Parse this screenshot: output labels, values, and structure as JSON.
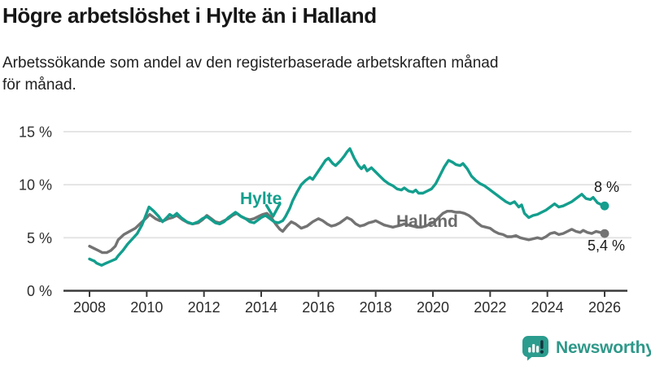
{
  "header": {
    "title": "Högre arbetslöshet i Hylte än i Halland",
    "subtitle_lines": [
      "Arbetssökande som andel av den registerbaserade arbetskraften månad",
      "för månad."
    ]
  },
  "footer": {
    "brand": "Newsworthy",
    "brand_color": "#2e9889"
  },
  "chart_data": {
    "type": "line",
    "title": "Högre arbetslöshet i Hylte än i Halland",
    "subtitle": "Arbetssökande som andel av den registerbaserade arbetskraften månad för månad.",
    "grid": true,
    "x_axis": {
      "ticks": [
        2008,
        2010,
        2012,
        2014,
        2016,
        2018,
        2020,
        2022,
        2024,
        2026
      ],
      "tick_labels": [
        "2008",
        "2010",
        "2012",
        "2014",
        "2016",
        "2018",
        "2020",
        "2022",
        "2024",
        "2026"
      ],
      "range": [
        2007.5,
        2026.5
      ]
    },
    "y_axis": {
      "ticks": [
        0,
        5,
        10,
        15
      ],
      "tick_labels": [
        "0 %",
        "5 %",
        "10 %",
        "15 %"
      ],
      "range": [
        0,
        15
      ],
      "unit": "%"
    },
    "series": [
      {
        "name": "Hylte",
        "color": "#139e8d",
        "end_label": "8 %",
        "end_value": 8.0,
        "points": [
          [
            2008.0,
            3.0
          ],
          [
            2008.08,
            2.9
          ],
          [
            2008.17,
            2.8
          ],
          [
            2008.25,
            2.6
          ],
          [
            2008.42,
            2.4
          ],
          [
            2008.58,
            2.6
          ],
          [
            2008.75,
            2.8
          ],
          [
            2008.92,
            3.0
          ],
          [
            2009.0,
            3.3
          ],
          [
            2009.17,
            3.8
          ],
          [
            2009.33,
            4.4
          ],
          [
            2009.5,
            4.9
          ],
          [
            2009.67,
            5.4
          ],
          [
            2009.83,
            6.2
          ],
          [
            2009.95,
            7.0
          ],
          [
            2010.08,
            7.9
          ],
          [
            2010.25,
            7.5
          ],
          [
            2010.42,
            7.0
          ],
          [
            2010.55,
            6.5
          ],
          [
            2010.7,
            6.9
          ],
          [
            2010.8,
            7.2
          ],
          [
            2010.92,
            7.0
          ],
          [
            2011.05,
            7.3
          ],
          [
            2011.2,
            6.9
          ],
          [
            2011.4,
            6.5
          ],
          [
            2011.6,
            6.3
          ],
          [
            2011.8,
            6.5
          ],
          [
            2011.95,
            6.8
          ],
          [
            2012.1,
            7.0
          ],
          [
            2012.25,
            6.7
          ],
          [
            2012.4,
            6.4
          ],
          [
            2012.55,
            6.3
          ],
          [
            2012.7,
            6.5
          ],
          [
            2012.85,
            6.9
          ],
          [
            2013.0,
            7.2
          ],
          [
            2013.1,
            7.4
          ],
          [
            2013.3,
            7.0
          ],
          [
            2013.45,
            6.8
          ],
          [
            2013.6,
            6.5
          ],
          [
            2013.75,
            6.4
          ],
          [
            2013.9,
            6.7
          ],
          [
            2014.0,
            6.9
          ],
          [
            2014.15,
            7.1
          ],
          [
            2014.3,
            6.8
          ],
          [
            2014.45,
            6.5
          ],
          [
            2014.6,
            6.4
          ],
          [
            2014.75,
            6.6
          ],
          [
            2014.85,
            7.0
          ],
          [
            2015.0,
            7.8
          ],
          [
            2015.1,
            8.5
          ],
          [
            2015.25,
            9.3
          ],
          [
            2015.4,
            10.0
          ],
          [
            2015.55,
            10.4
          ],
          [
            2015.7,
            10.7
          ],
          [
            2015.8,
            10.5
          ],
          [
            2015.95,
            11.1
          ],
          [
            2016.1,
            11.7
          ],
          [
            2016.25,
            12.3
          ],
          [
            2016.35,
            12.5
          ],
          [
            2016.5,
            12.0
          ],
          [
            2016.6,
            11.8
          ],
          [
            2016.75,
            12.2
          ],
          [
            2016.9,
            12.7
          ],
          [
            2017.0,
            13.1
          ],
          [
            2017.1,
            13.4
          ],
          [
            2017.25,
            12.5
          ],
          [
            2017.4,
            11.8
          ],
          [
            2017.5,
            11.5
          ],
          [
            2017.6,
            11.8
          ],
          [
            2017.7,
            11.3
          ],
          [
            2017.85,
            11.6
          ],
          [
            2018.0,
            11.2
          ],
          [
            2018.15,
            10.8
          ],
          [
            2018.3,
            10.4
          ],
          [
            2018.45,
            10.1
          ],
          [
            2018.6,
            9.9
          ],
          [
            2018.75,
            9.6
          ],
          [
            2018.9,
            9.5
          ],
          [
            2019.0,
            9.7
          ],
          [
            2019.15,
            9.4
          ],
          [
            2019.3,
            9.3
          ],
          [
            2019.4,
            9.5
          ],
          [
            2019.5,
            9.2
          ],
          [
            2019.65,
            9.2
          ],
          [
            2019.8,
            9.4
          ],
          [
            2019.95,
            9.6
          ],
          [
            2020.1,
            10.1
          ],
          [
            2020.25,
            10.9
          ],
          [
            2020.4,
            11.7
          ],
          [
            2020.55,
            12.3
          ],
          [
            2020.7,
            12.1
          ],
          [
            2020.8,
            11.9
          ],
          [
            2020.95,
            11.8
          ],
          [
            2021.05,
            12.0
          ],
          [
            2021.2,
            11.5
          ],
          [
            2021.35,
            10.8
          ],
          [
            2021.5,
            10.4
          ],
          [
            2021.65,
            10.1
          ],
          [
            2021.8,
            9.9
          ],
          [
            2021.95,
            9.6
          ],
          [
            2022.1,
            9.3
          ],
          [
            2022.25,
            9.0
          ],
          [
            2022.4,
            8.7
          ],
          [
            2022.55,
            8.4
          ],
          [
            2022.7,
            8.2
          ],
          [
            2022.85,
            8.4
          ],
          [
            2023.0,
            7.9
          ],
          [
            2023.1,
            8.1
          ],
          [
            2023.2,
            7.3
          ],
          [
            2023.35,
            6.9
          ],
          [
            2023.5,
            7.1
          ],
          [
            2023.65,
            7.2
          ],
          [
            2023.8,
            7.4
          ],
          [
            2023.95,
            7.6
          ],
          [
            2024.1,
            7.9
          ],
          [
            2024.25,
            8.2
          ],
          [
            2024.4,
            7.9
          ],
          [
            2024.55,
            8.0
          ],
          [
            2024.7,
            8.2
          ],
          [
            2024.85,
            8.4
          ],
          [
            2025.0,
            8.7
          ],
          [
            2025.2,
            9.1
          ],
          [
            2025.35,
            8.7
          ],
          [
            2025.5,
            8.6
          ],
          [
            2025.6,
            8.8
          ],
          [
            2025.75,
            8.3
          ],
          [
            2025.9,
            8.1
          ],
          [
            2026.0,
            8.0
          ]
        ]
      },
      {
        "name": "Halland",
        "color": "#737373",
        "end_label": "5,4 %",
        "end_value": 5.4,
        "points": [
          [
            2008.0,
            4.2
          ],
          [
            2008.15,
            4.0
          ],
          [
            2008.3,
            3.8
          ],
          [
            2008.45,
            3.6
          ],
          [
            2008.6,
            3.6
          ],
          [
            2008.75,
            3.8
          ],
          [
            2008.9,
            4.2
          ],
          [
            2009.0,
            4.8
          ],
          [
            2009.2,
            5.3
          ],
          [
            2009.4,
            5.6
          ],
          [
            2009.6,
            5.9
          ],
          [
            2009.8,
            6.4
          ],
          [
            2010.0,
            6.9
          ],
          [
            2010.1,
            7.2
          ],
          [
            2010.3,
            6.8
          ],
          [
            2010.45,
            6.6
          ],
          [
            2010.6,
            6.6
          ],
          [
            2010.75,
            6.8
          ],
          [
            2010.9,
            6.9
          ],
          [
            2011.05,
            7.1
          ],
          [
            2011.25,
            6.7
          ],
          [
            2011.45,
            6.4
          ],
          [
            2011.6,
            6.3
          ],
          [
            2011.8,
            6.4
          ],
          [
            2011.95,
            6.7
          ],
          [
            2012.1,
            7.1
          ],
          [
            2012.25,
            6.8
          ],
          [
            2012.4,
            6.5
          ],
          [
            2012.55,
            6.4
          ],
          [
            2012.7,
            6.6
          ],
          [
            2012.85,
            6.8
          ],
          [
            2013.0,
            7.1
          ],
          [
            2013.15,
            7.3
          ],
          [
            2013.3,
            7.0
          ],
          [
            2013.45,
            6.8
          ],
          [
            2013.6,
            6.7
          ],
          [
            2013.75,
            6.8
          ],
          [
            2013.9,
            7.0
          ],
          [
            2014.05,
            7.2
          ],
          [
            2014.2,
            7.3
          ],
          [
            2014.35,
            6.9
          ],
          [
            2014.5,
            6.3
          ],
          [
            2014.65,
            5.8
          ],
          [
            2014.75,
            5.6
          ],
          [
            2014.9,
            6.1
          ],
          [
            2015.05,
            6.5
          ],
          [
            2015.2,
            6.3
          ],
          [
            2015.4,
            5.9
          ],
          [
            2015.6,
            6.1
          ],
          [
            2015.8,
            6.5
          ],
          [
            2016.0,
            6.8
          ],
          [
            2016.15,
            6.6
          ],
          [
            2016.3,
            6.3
          ],
          [
            2016.45,
            6.1
          ],
          [
            2016.6,
            6.2
          ],
          [
            2016.75,
            6.4
          ],
          [
            2016.9,
            6.7
          ],
          [
            2017.0,
            6.9
          ],
          [
            2017.15,
            6.7
          ],
          [
            2017.3,
            6.3
          ],
          [
            2017.45,
            6.1
          ],
          [
            2017.6,
            6.2
          ],
          [
            2017.75,
            6.4
          ],
          [
            2017.9,
            6.5
          ],
          [
            2018.0,
            6.6
          ],
          [
            2018.15,
            6.4
          ],
          [
            2018.3,
            6.2
          ],
          [
            2018.45,
            6.1
          ],
          [
            2018.6,
            6.0
          ],
          [
            2018.75,
            6.1
          ],
          [
            2018.9,
            6.2
          ],
          [
            2019.0,
            6.3
          ],
          [
            2019.15,
            6.2
          ],
          [
            2019.3,
            6.1
          ],
          [
            2019.45,
            6.0
          ],
          [
            2019.6,
            6.0
          ],
          [
            2019.75,
            6.1
          ],
          [
            2019.9,
            6.3
          ],
          [
            2020.05,
            6.5
          ],
          [
            2020.2,
            6.9
          ],
          [
            2020.35,
            7.3
          ],
          [
            2020.5,
            7.5
          ],
          [
            2020.65,
            7.5
          ],
          [
            2020.8,
            7.4
          ],
          [
            2020.95,
            7.4
          ],
          [
            2021.1,
            7.3
          ],
          [
            2021.25,
            7.1
          ],
          [
            2021.4,
            6.8
          ],
          [
            2021.55,
            6.4
          ],
          [
            2021.7,
            6.1
          ],
          [
            2021.85,
            6.0
          ],
          [
            2022.0,
            5.9
          ],
          [
            2022.15,
            5.6
          ],
          [
            2022.3,
            5.4
          ],
          [
            2022.45,
            5.3
          ],
          [
            2022.6,
            5.1
          ],
          [
            2022.75,
            5.1
          ],
          [
            2022.9,
            5.2
          ],
          [
            2023.05,
            5.0
          ],
          [
            2023.2,
            4.9
          ],
          [
            2023.35,
            4.8
          ],
          [
            2023.5,
            4.9
          ],
          [
            2023.65,
            5.0
          ],
          [
            2023.8,
            4.9
          ],
          [
            2023.95,
            5.1
          ],
          [
            2024.1,
            5.4
          ],
          [
            2024.25,
            5.5
          ],
          [
            2024.4,
            5.3
          ],
          [
            2024.55,
            5.4
          ],
          [
            2024.7,
            5.6
          ],
          [
            2024.85,
            5.8
          ],
          [
            2025.0,
            5.6
          ],
          [
            2025.15,
            5.5
          ],
          [
            2025.25,
            5.7
          ],
          [
            2025.4,
            5.5
          ],
          [
            2025.55,
            5.4
          ],
          [
            2025.7,
            5.6
          ],
          [
            2025.85,
            5.5
          ],
          [
            2026.0,
            5.4
          ]
        ]
      }
    ],
    "legend_position": "inline-labels"
  }
}
